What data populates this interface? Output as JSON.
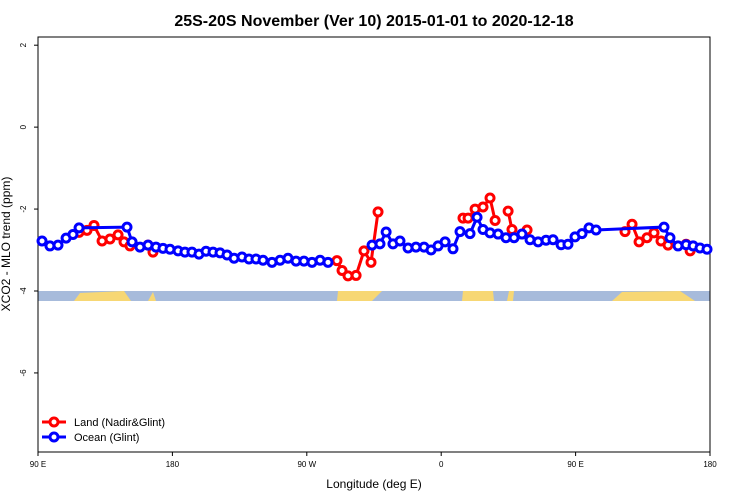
{
  "chart_data": {
    "type": "line",
    "title": "25S-20S November (Ver 10)   2015-01-01 to 2020-12-18",
    "x_label": "Longitude (deg E)",
    "y_label": "XCO2 - MLO trend (ppm)",
    "xlim": [
      90,
      540
    ],
    "ylim": [
      -7.93,
      2.2
    ],
    "xticks": [
      {
        "value": 90,
        "label": "90 E"
      },
      {
        "value": 180,
        "label": "180"
      },
      {
        "value": 270,
        "label": "90 W"
      },
      {
        "value": 360,
        "label": "0"
      },
      {
        "value": 450,
        "label": "90 E"
      },
      {
        "value": 540,
        "label": "180"
      }
    ],
    "yticks": [
      2,
      0,
      -2,
      -4,
      -6
    ],
    "legend": "bottom-left",
    "series": [
      {
        "name": "Land (Nadir&Glint)",
        "color": "#ff0000",
        "x": [
          117.5,
          122.8,
          127.5,
          132.9,
          138.2,
          143.6,
          147.6,
          151.6,
          null,
          163.7,
          167.0,
          null,
          290.2,
          293.6,
          297.6,
          303.0,
          308.3,
          313.0,
          317.7,
          null,
          374.6,
          378.0,
          382.7,
          388.0,
          392.7,
          396.1,
          null,
          404.8,
          407.4,
          null,
          417.5,
          null,
          483.1,
          487.8,
          492.5,
          497.8,
          502.5,
          507.2,
          511.9,
          null,
          524.0,
          526.7
        ],
        "values": [
          -2.57,
          -2.52,
          -2.4,
          -2.78,
          -2.73,
          -2.63,
          -2.8,
          -2.9,
          null,
          -2.88,
          -3.05,
          null,
          -3.26,
          -3.5,
          -3.63,
          -3.62,
          -3.02,
          -3.3,
          -2.07,
          null,
          -2.22,
          -2.22,
          -2.0,
          -1.95,
          -1.73,
          -2.28,
          null,
          -2.05,
          -2.5,
          null,
          -2.51,
          null,
          -2.55,
          -2.37,
          -2.8,
          -2.7,
          -2.58,
          -2.78,
          -2.88,
          null,
          -2.86,
          -3.02
        ]
      },
      {
        "name": "Ocean (Glint)",
        "color": "#0000ff",
        "x": [
          92.7,
          98.0,
          103.4,
          108.8,
          113.4,
          117.5,
          149.6,
          153.0,
          158.3,
          163.7,
          169.0,
          173.7,
          178.4,
          183.8,
          188.4,
          193.1,
          197.8,
          202.5,
          207.2,
          211.9,
          216.6,
          221.3,
          226.6,
          231.3,
          236.0,
          240.7,
          246.7,
          252.1,
          257.4,
          262.8,
          268.1,
          273.5,
          278.9,
          284.2,
          null,
          313.7,
          319.0,
          323.1,
          327.7,
          332.4,
          337.8,
          343.1,
          348.5,
          353.2,
          357.9,
          362.6,
          367.9,
          372.6,
          379.3,
          384.0,
          388.0,
          392.7,
          398.1,
          403.4,
          408.8,
          414.1,
          419.5,
          424.9,
          430.2,
          434.9,
          440.3,
          444.9,
          449.6,
          454.3,
          459.0,
          463.7,
          509.2,
          513.2,
          518.6,
          524.0,
          528.7,
          533.3,
          538.0
        ],
        "values": [
          -2.78,
          -2.9,
          -2.88,
          -2.71,
          -2.62,
          -2.46,
          -2.44,
          -2.8,
          -2.93,
          -2.88,
          -2.93,
          -2.96,
          -2.98,
          -3.02,
          -3.05,
          -3.05,
          -3.1,
          -3.03,
          -3.05,
          -3.07,
          -3.12,
          -3.2,
          -3.17,
          -3.22,
          -3.22,
          -3.25,
          -3.3,
          -3.25,
          -3.2,
          -3.27,
          -3.27,
          -3.3,
          -3.25,
          -3.3,
          null,
          -2.88,
          -2.85,
          -2.56,
          -2.85,
          -2.78,
          -2.95,
          -2.93,
          -2.93,
          -3.0,
          -2.9,
          -2.8,
          -2.97,
          -2.55,
          -2.6,
          -2.2,
          -2.5,
          -2.58,
          -2.61,
          -2.7,
          -2.7,
          -2.61,
          -2.75,
          -2.8,
          -2.76,
          -2.75,
          -2.87,
          -2.86,
          -2.68,
          -2.6,
          -2.46,
          -2.51,
          -2.44,
          -2.7,
          -2.9,
          -2.87,
          -2.9,
          -2.95,
          -2.98
        ]
      }
    ]
  }
}
